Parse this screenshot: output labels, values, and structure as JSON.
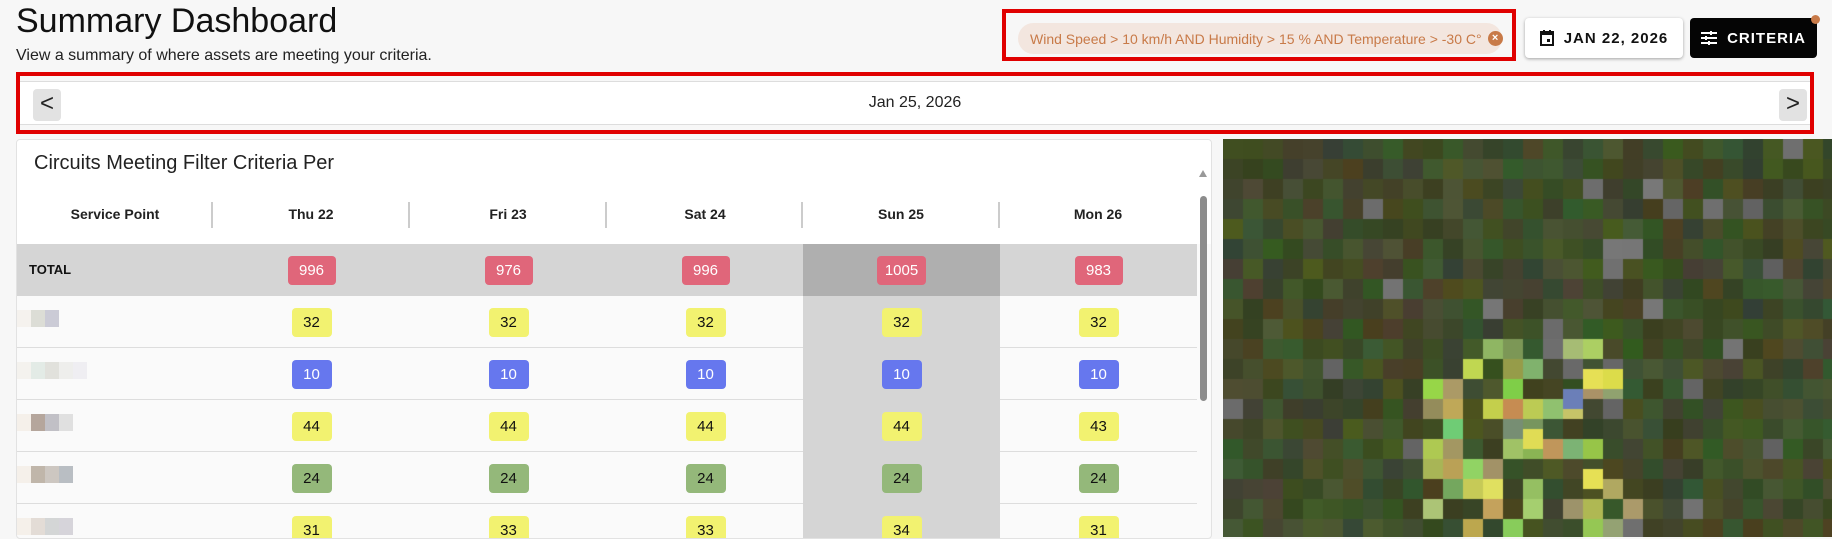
{
  "header": {
    "title": "Summary Dashboard",
    "subtitle": "View a summary of where assets are meeting your criteria."
  },
  "filter_chip": {
    "label": "Wind Speed > 10 km/h AND Humidity > 15 % AND Temperature > -30 C°",
    "clear_icon": "close-circle-icon"
  },
  "date_button": {
    "label": "JAN 22, 2026",
    "icon": "calendar-icon"
  },
  "criteria_button": {
    "label": "CRITERIA",
    "icon": "sliders-icon",
    "indicator_color": "#c87a48"
  },
  "date_nav": {
    "prev": "<",
    "next": ">",
    "current": "Jan 25, 2026"
  },
  "table": {
    "title": "Circuits Meeting Filter Criteria Per",
    "columns": [
      "Service Point",
      "Thu 22",
      "Fri 23",
      "Sat 24",
      "Sun 25",
      "Mon 26"
    ],
    "highlighted_column": "Sun 25",
    "total": {
      "label": "TOTAL",
      "values": [
        "996",
        "976",
        "996",
        "1005",
        "983"
      ]
    },
    "rows": [
      {
        "values": [
          "32",
          "32",
          "32",
          "32",
          "32"
        ],
        "color": "yellow"
      },
      {
        "values": [
          "10",
          "10",
          "10",
          "10",
          "10"
        ],
        "color": "blue"
      },
      {
        "values": [
          "44",
          "44",
          "44",
          "44",
          "43"
        ],
        "color": "yellow"
      },
      {
        "values": [
          "24",
          "24",
          "24",
          "24",
          "24"
        ],
        "color": "green"
      },
      {
        "values": [
          "31",
          "33",
          "33",
          "34",
          "31"
        ],
        "color": "yellow"
      }
    ]
  },
  "colors": {
    "red": "#e0667a",
    "yellow": "#f2f270",
    "blue": "#6677ee",
    "green": "#94b87a",
    "highlight": "#e00000"
  }
}
